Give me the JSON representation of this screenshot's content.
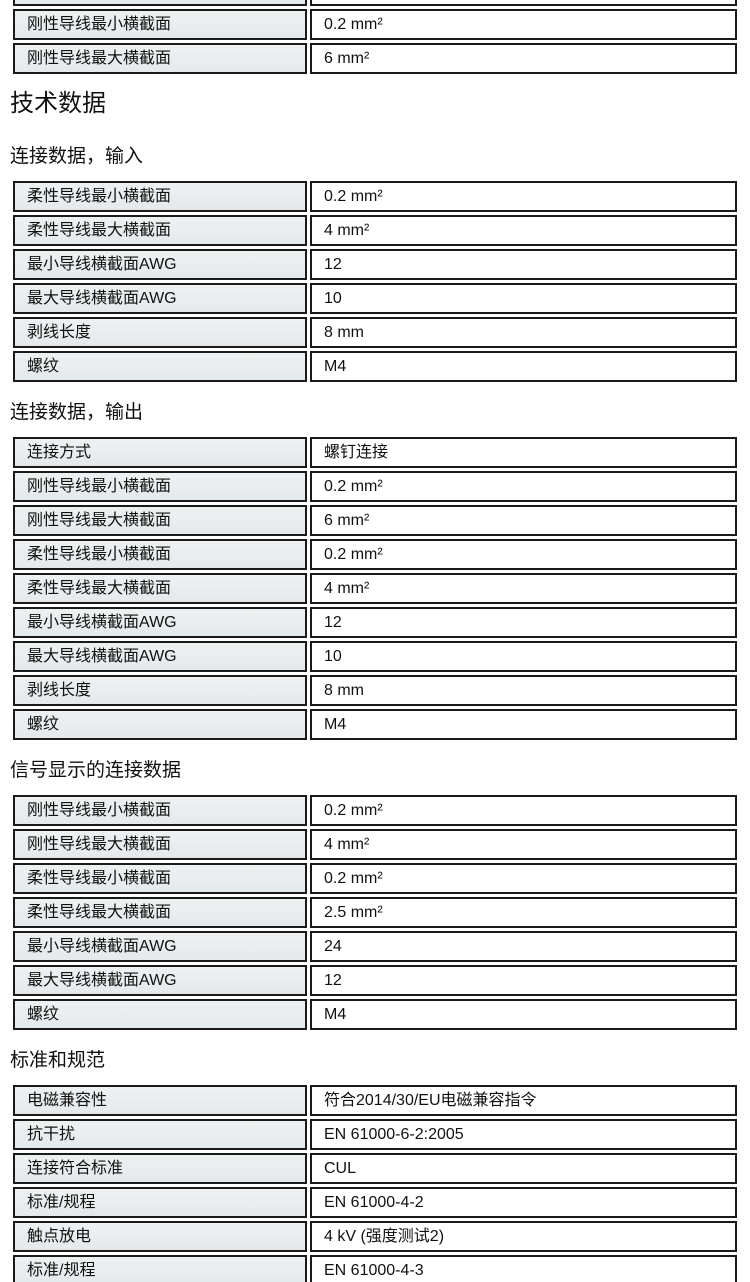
{
  "page_heading": "技术数据",
  "colors": {
    "border": "#1a1a1a",
    "label_cell_bg": "#e9edee",
    "value_cell_bg": "#ffffff",
    "text": "#111111"
  },
  "top_table": {
    "rows": [
      [
        "刚性导线最小横截面",
        "0.2 mm²"
      ],
      [
        "刚性导线最大横截面",
        "6 mm²"
      ]
    ]
  },
  "sections": [
    {
      "heading": "连接数据，输入",
      "rows": [
        [
          "柔性导线最小横截面",
          "0.2 mm²"
        ],
        [
          "柔性导线最大横截面",
          "4 mm²"
        ],
        [
          "最小导线横截面AWG",
          "12"
        ],
        [
          "最大导线横截面AWG",
          "10"
        ],
        [
          "剥线长度",
          "8 mm"
        ],
        [
          "螺纹",
          "M4"
        ]
      ]
    },
    {
      "heading": "连接数据，输出",
      "rows": [
        [
          "连接方式",
          "螺钉连接"
        ],
        [
          "刚性导线最小横截面",
          "0.2 mm²"
        ],
        [
          "刚性导线最大横截面",
          "6 mm²"
        ],
        [
          "柔性导线最小横截面",
          "0.2 mm²"
        ],
        [
          "柔性导线最大横截面",
          "4 mm²"
        ],
        [
          "最小导线横截面AWG",
          "12"
        ],
        [
          "最大导线横截面AWG",
          "10"
        ],
        [
          "剥线长度",
          "8 mm"
        ],
        [
          "螺纹",
          "M4"
        ]
      ]
    },
    {
      "heading": "信号显示的连接数据",
      "rows": [
        [
          "刚性导线最小横截面",
          "0.2 mm²"
        ],
        [
          "刚性导线最大横截面",
          "4 mm²"
        ],
        [
          "柔性导线最小横截面",
          "0.2 mm²"
        ],
        [
          "柔性导线最大横截面",
          "2.5 mm²"
        ],
        [
          "最小导线横截面AWG",
          "24"
        ],
        [
          "最大导线横截面AWG",
          "12"
        ],
        [
          "螺纹",
          "M4"
        ]
      ]
    },
    {
      "heading": "标准和规范",
      "rows": [
        [
          "电磁兼容性",
          "符合2014/30/EU电磁兼容指令"
        ],
        [
          "抗干扰",
          "EN 61000-6-2:2005"
        ],
        [
          "连接符合标准",
          "CUL"
        ],
        [
          "标准/规程",
          "EN 61000-4-2"
        ],
        [
          "触点放电",
          "4 kV (强度测试2)"
        ],
        [
          "标准/规程",
          "EN 61000-4-3"
        ]
      ]
    }
  ]
}
